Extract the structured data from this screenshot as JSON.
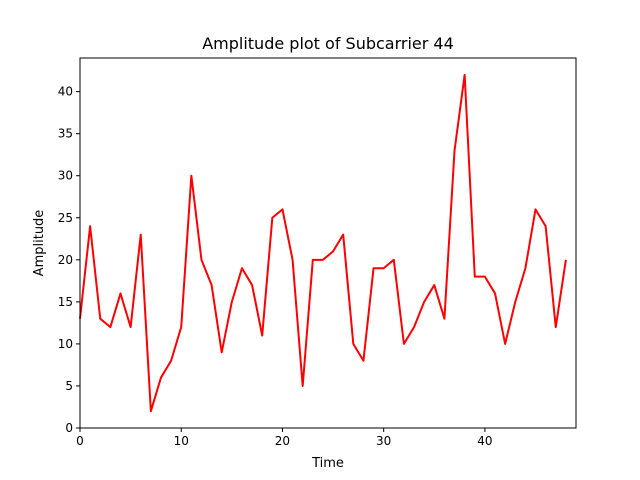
{
  "chart_data": {
    "type": "line",
    "title": "Amplitude plot of Subcarrier 44",
    "xlabel": "Time",
    "ylabel": "Amplitude",
    "xlim": [
      0,
      49
    ],
    "ylim": [
      0,
      44
    ],
    "xticks": [
      0,
      10,
      20,
      30,
      40
    ],
    "yticks": [
      0,
      5,
      10,
      15,
      20,
      25,
      30,
      35,
      40
    ],
    "grid": false,
    "series": [
      {
        "color": "#ff0000",
        "x": [
          0,
          1,
          2,
          3,
          4,
          5,
          6,
          7,
          8,
          9,
          10,
          11,
          12,
          13,
          14,
          15,
          16,
          17,
          18,
          19,
          20,
          21,
          22,
          23,
          24,
          25,
          26,
          27,
          28,
          29,
          30,
          31,
          32,
          33,
          34,
          35,
          36,
          37,
          38,
          39,
          40,
          41,
          42,
          43,
          44,
          45,
          46,
          47,
          48
        ],
        "values": [
          13,
          24,
          13,
          12,
          16,
          12,
          23,
          2,
          6,
          8,
          12,
          30,
          20,
          17,
          9,
          15,
          19,
          17,
          11,
          25,
          26,
          20,
          5,
          20,
          20,
          21,
          23,
          10,
          8,
          19,
          19,
          20,
          10,
          12,
          15,
          17,
          13,
          33,
          42,
          18,
          18,
          16,
          10,
          15,
          19,
          26,
          24,
          12,
          20
        ]
      }
    ]
  }
}
